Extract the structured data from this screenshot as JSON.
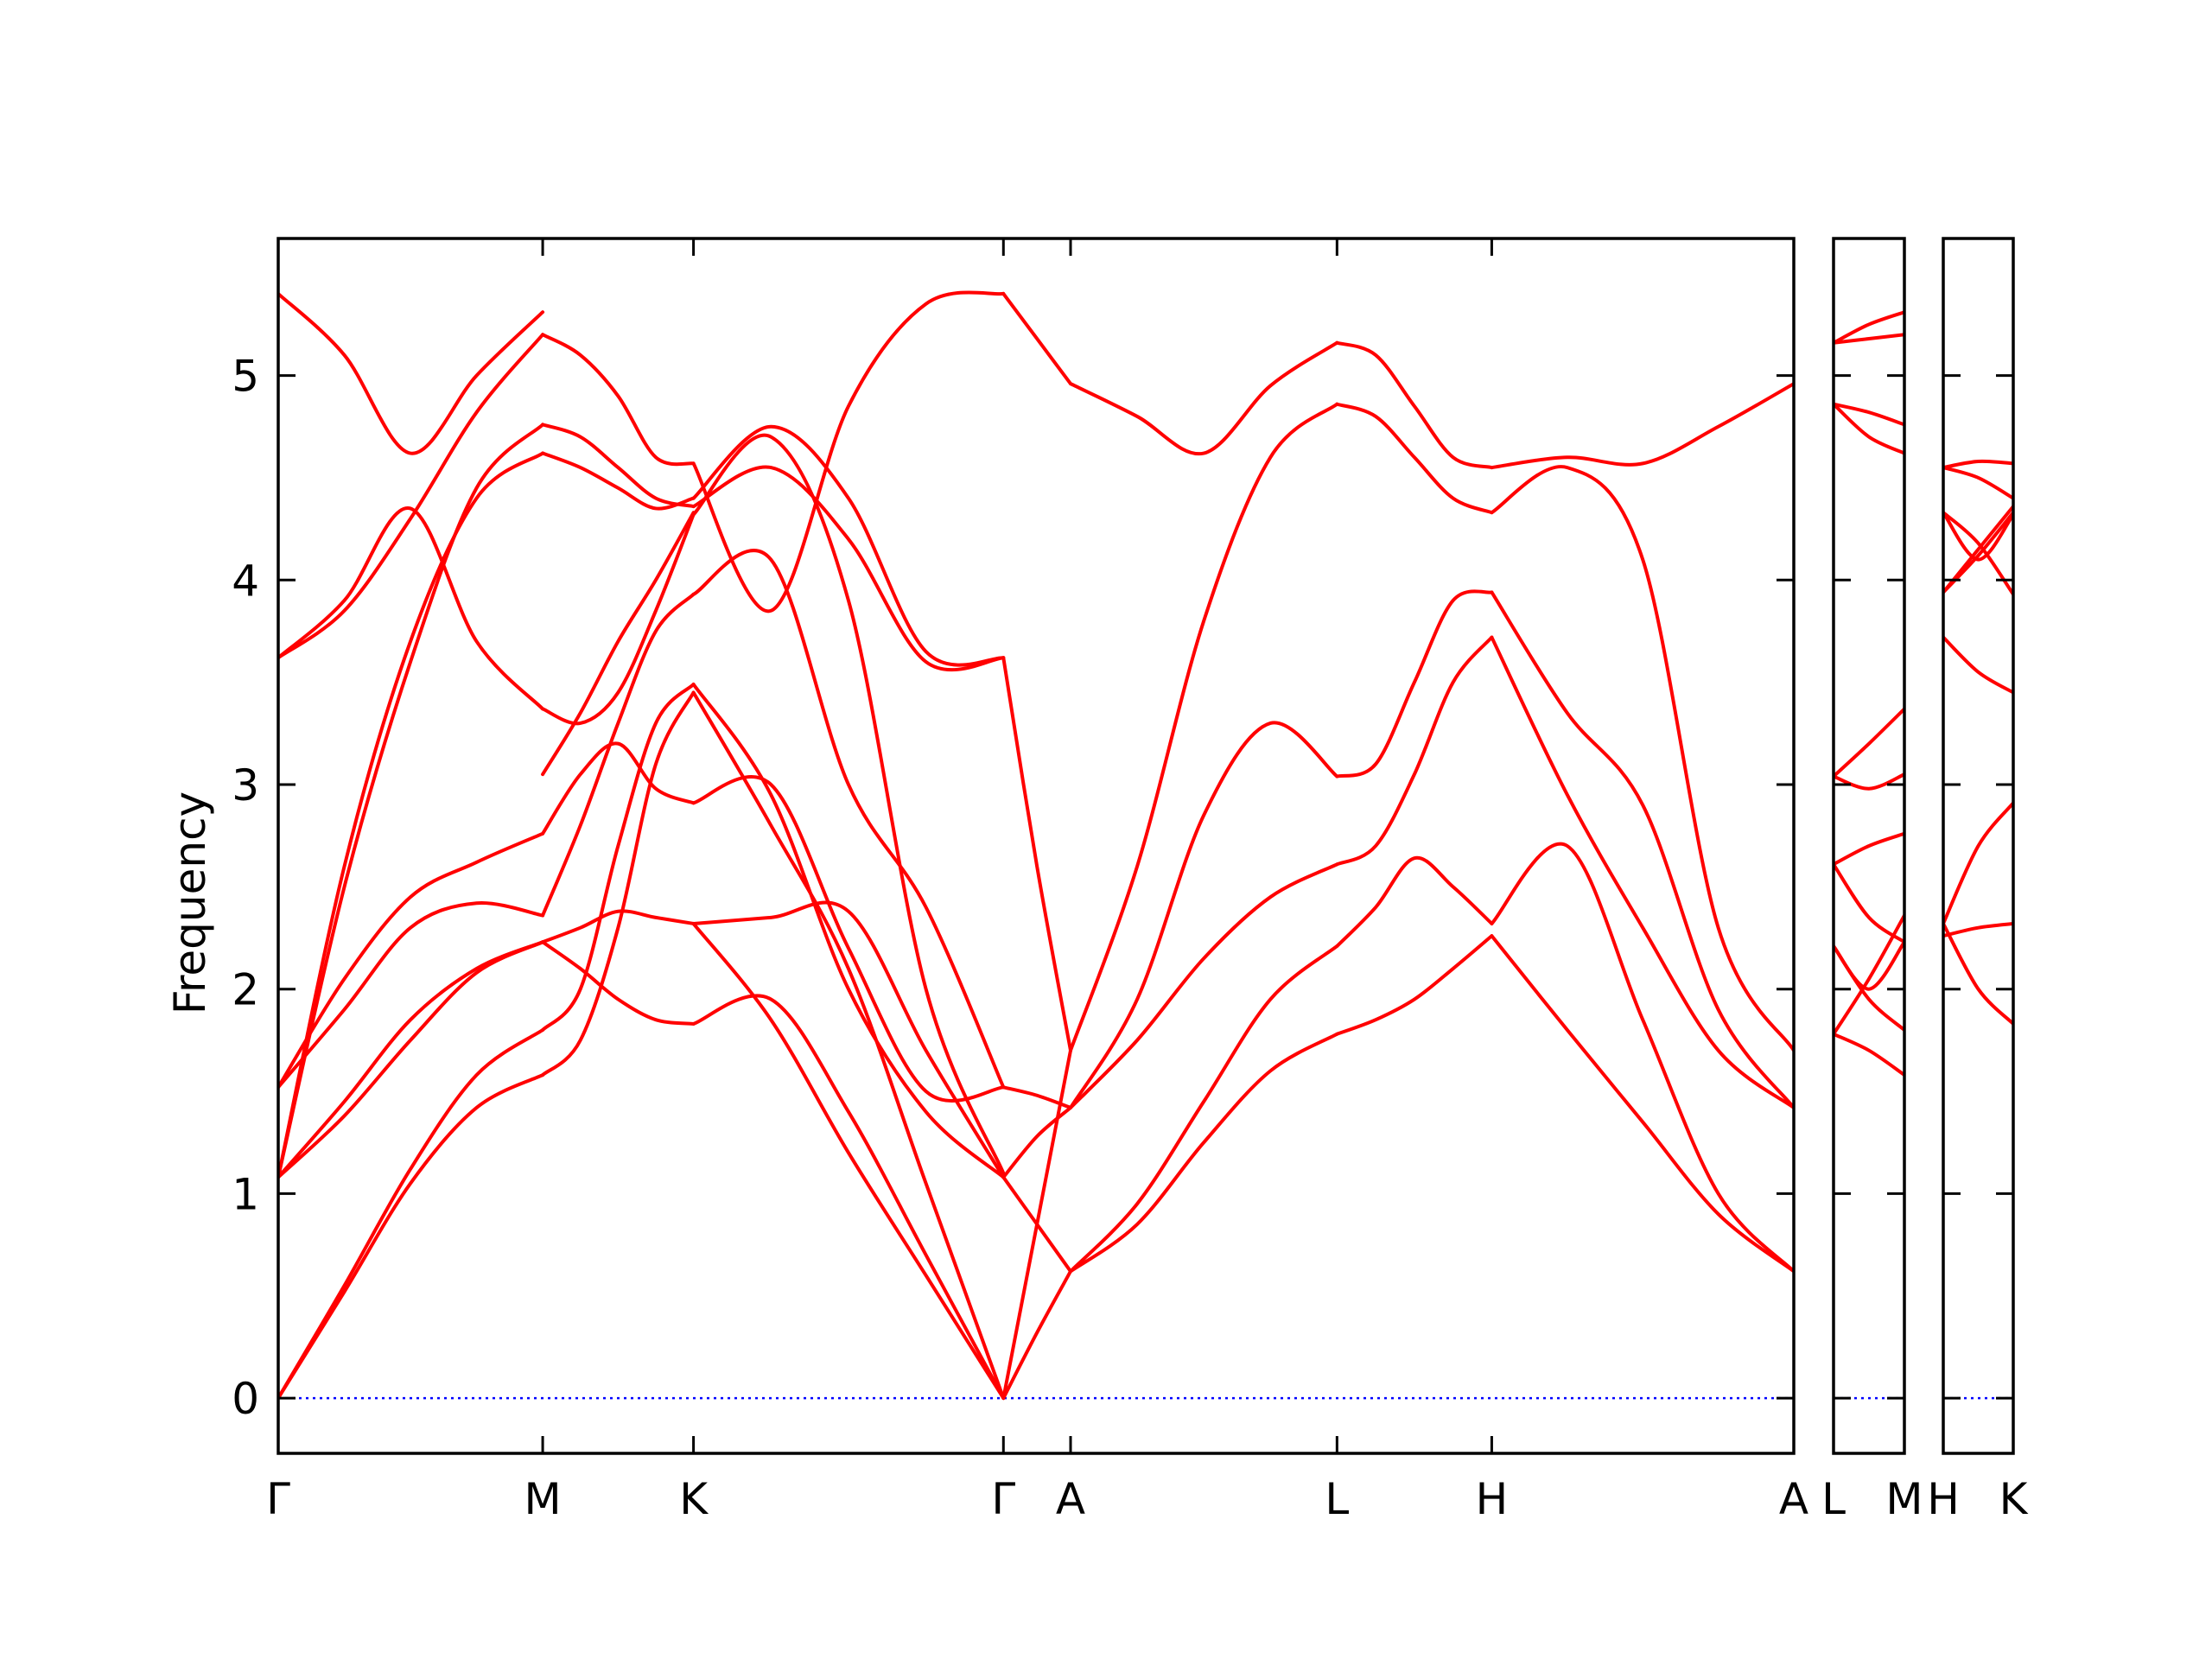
{
  "chart_data": {
    "type": "line",
    "title": "",
    "ylabel": "Frequency",
    "xlabel": "",
    "ylim": [
      -0.27,
      5.67
    ],
    "yticks": [
      0,
      1,
      2,
      3,
      4,
      5
    ],
    "grid": false,
    "legend": "none",
    "colors": {
      "bands": "#ff0000",
      "zero": "#0000ff"
    },
    "panels": [
      {
        "labels": [
          "Γ",
          "M",
          "K",
          "Γ",
          "A",
          "L",
          "H",
          "A"
        ],
        "segments": [
          {
            "from": "Γ",
            "to": "M",
            "x": [
              0,
              0.25,
              0.5,
              0.75,
              1
            ],
            "bands": [
              [
                0,
                0.52,
                1.05,
                1.42,
                1.58
              ],
              [
                0,
                0.55,
                1.12,
                1.58,
                1.8
              ],
              [
                1.08,
                1.38,
                1.75,
                2.08,
                2.23
              ],
              [
                1.08,
                1.45,
                1.85,
                2.1,
                2.23
              ],
              [
                1.52,
                1.9,
                2.3,
                2.42,
                2.36
              ],
              [
                1.52,
                2.05,
                2.45,
                2.62,
                2.76
              ],
              [
                1.08,
                2.6,
                3.7,
                4.4,
                4.62
              ],
              [
                1.08,
                2.5,
                3.6,
                4.45,
                4.76
              ],
              [
                3.62,
                3.9,
                4.35,
                3.7,
                3.37
              ],
              [
                3.62,
                3.85,
                4.3,
                4.82,
                5.2
              ],
              [
                5.4,
                5.1,
                4.62,
                5.0,
                5.31
              ]
            ]
          },
          {
            "from": "M",
            "to": "K",
            "x": [
              0,
              0.25,
              0.5,
              0.75,
              1
            ],
            "bands": [
              [
                1.58,
                1.75,
                2.3,
                3.1,
                3.45
              ],
              [
                1.8,
                2.0,
                2.7,
                3.3,
                3.49
              ],
              [
                2.23,
                2.1,
                1.95,
                1.85,
                1.83
              ],
              [
                2.23,
                2.3,
                2.38,
                2.35,
                2.32
              ],
              [
                2.36,
                2.8,
                3.3,
                3.75,
                3.93
              ],
              [
                2.76,
                3.05,
                3.2,
                2.98,
                2.91
              ],
              [
                3.37,
                3.3,
                3.45,
                3.85,
                4.32
              ],
              [
                3.05,
                3.35,
                3.7,
                4.0,
                4.33
              ],
              [
                4.62,
                4.55,
                4.45,
                4.35,
                4.4
              ],
              [
                4.76,
                4.7,
                4.55,
                4.4,
                4.36
              ],
              [
                5.2,
                5.1,
                4.9,
                4.6,
                4.57
              ]
            ]
          },
          {
            "from": "K",
            "to": "Γ",
            "x": [
              0,
              0.25,
              0.5,
              0.75,
              1
            ],
            "bands": [
              [
                2.32,
                1.85,
                1.2,
                0.6,
                0
              ],
              [
                1.83,
                1.95,
                1.4,
                0.7,
                0
              ],
              [
                3.45,
                2.8,
                2.1,
                1.05,
                0
              ],
              [
                3.49,
                2.95,
                2.0,
                1.4,
                1.08
              ],
              [
                2.32,
                2.35,
                2.38,
                1.7,
                1.08
              ],
              [
                2.91,
                3.0,
                2.2,
                1.5,
                1.52
              ],
              [
                3.93,
                4.1,
                3.0,
                2.4,
                1.52
              ],
              [
                4.32,
                4.7,
                3.9,
                2.0,
                1.1
              ],
              [
                4.36,
                4.55,
                4.2,
                3.6,
                3.62
              ],
              [
                4.4,
                4.75,
                4.4,
                3.65,
                3.62
              ],
              [
                4.57,
                3.85,
                4.85,
                5.35,
                5.4
              ]
            ]
          },
          {
            "from": "Γ",
            "to": "A",
            "x": [
              0,
              0.5,
              1
            ],
            "bands": [
              [
                0,
                0.32,
                0.62
              ],
              [
                0,
                0.85,
                1.7
              ],
              [
                1.08,
                0.85,
                0.62
              ],
              [
                1.08,
                1.28,
                1.42
              ],
              [
                1.52,
                1.48,
                1.42
              ],
              [
                3.62,
                2.6,
                1.7
              ],
              [
                5.4,
                5.18,
                4.96
              ]
            ]
          },
          {
            "from": "A",
            "to": "L",
            "x": [
              0,
              0.25,
              0.5,
              0.75,
              1
            ],
            "bands": [
              [
                0.62,
                0.85,
                1.25,
                1.6,
                1.78
              ],
              [
                0.62,
                0.95,
                1.45,
                1.95,
                2.21
              ],
              [
                1.42,
                1.75,
                2.15,
                2.45,
                2.61
              ],
              [
                1.42,
                1.95,
                2.85,
                3.3,
                3.04
              ],
              [
                1.7,
                2.6,
                3.8,
                4.6,
                4.86
              ],
              [
                4.96,
                4.8,
                4.62,
                4.95,
                5.16
              ]
            ]
          },
          {
            "from": "L",
            "to": "H",
            "x": [
              0,
              0.25,
              0.5,
              0.75,
              1
            ],
            "bands": [
              [
                1.78,
                1.85,
                1.95,
                2.1,
                2.26
              ],
              [
                2.21,
                2.4,
                2.64,
                2.5,
                2.32
              ],
              [
                2.61,
                2.7,
                3.05,
                3.5,
                3.72
              ],
              [
                3.04,
                3.1,
                3.5,
                3.9,
                3.94
              ],
              [
                4.86,
                4.8,
                4.6,
                4.4,
                4.33
              ],
              [
                5.16,
                5.1,
                4.85,
                4.6,
                4.55
              ]
            ]
          },
          {
            "from": "H",
            "to": "A",
            "x": [
              0,
              0.25,
              0.5,
              0.75,
              1
            ],
            "bands": [
              [
                2.26,
                1.8,
                1.35,
                0.9,
                0.62
              ],
              [
                2.32,
                2.7,
                1.85,
                1.0,
                0.62
              ],
              [
                3.72,
                2.95,
                2.3,
                1.7,
                1.42
              ],
              [
                3.94,
                3.35,
                2.9,
                1.9,
                1.42
              ],
              [
                4.33,
                4.55,
                4.1,
                2.3,
                1.7
              ],
              [
                4.55,
                4.6,
                4.57,
                4.75,
                4.96
              ]
            ]
          }
        ]
      },
      {
        "labels": [
          "L",
          "M"
        ],
        "segments": [
          {
            "from": "L",
            "to": "M",
            "x": [
              0,
              0.5,
              1
            ],
            "bands": [
              [
                1.78,
                1.7,
                1.58
              ],
              [
                2.21,
                1.95,
                1.8
              ],
              [
                2.21,
                2.0,
                2.23
              ],
              [
                2.61,
                2.35,
                2.23
              ],
              [
                1.78,
                2.05,
                2.36
              ],
              [
                2.61,
                2.7,
                2.76
              ],
              [
                3.04,
                2.98,
                3.05
              ],
              [
                3.04,
                3.2,
                3.37
              ],
              [
                4.86,
                4.7,
                4.62
              ],
              [
                4.86,
                4.82,
                4.76
              ],
              [
                5.16,
                5.18,
                5.2
              ],
              [
                5.16,
                5.25,
                5.31
              ]
            ]
          }
        ]
      },
      {
        "labels": [
          "H",
          "K"
        ],
        "segments": [
          {
            "from": "H",
            "to": "K",
            "x": [
              0,
              0.5,
              1
            ],
            "bands": [
              [
                2.26,
                2.3,
                2.32
              ],
              [
                2.32,
                2.0,
                1.83
              ],
              [
                2.32,
                2.7,
                2.91
              ],
              [
                3.72,
                3.55,
                3.45
              ],
              [
                3.94,
                4.12,
                4.33
              ],
              [
                3.94,
                4.15,
                4.36
              ],
              [
                4.33,
                4.18,
                3.93
              ],
              [
                4.55,
                4.5,
                4.4
              ],
              [
                4.33,
                4.1,
                4.32
              ],
              [
                4.55,
                4.58,
                4.57
              ]
            ]
          }
        ]
      }
    ]
  }
}
